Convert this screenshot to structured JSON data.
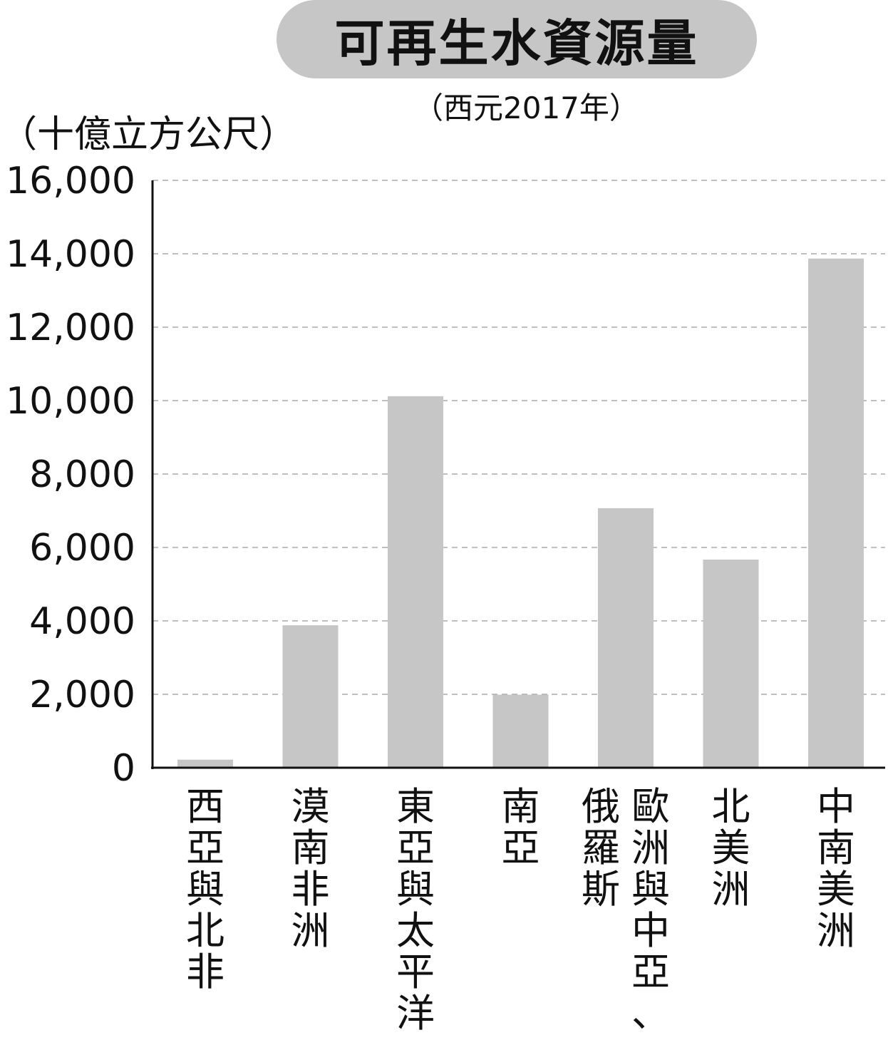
{
  "title": "可再生水資源量",
  "subtitle": "（西元2017年）",
  "unit_label": "（十億立方公尺）",
  "colors": {
    "bar": "#c6c6c6",
    "title_pill": "#c6c6c6",
    "axis": "#111111",
    "gridline": "#aaaaaa",
    "text": "#111111"
  },
  "chart_data": {
    "type": "bar",
    "title": "可再生水資源量",
    "subtitle": "（西元2017年）",
    "ylabel": "（十億立方公尺）",
    "xlabel": "",
    "ylim": [
      0,
      16000
    ],
    "y_ticks": [
      0,
      2000,
      4000,
      6000,
      8000,
      10000,
      12000,
      14000,
      16000
    ],
    "y_tick_labels": [
      "0",
      "2,000",
      "4,000",
      "6,000",
      "8,000",
      "10,000",
      "12,000",
      "14,000",
      "16,000"
    ],
    "grid": "horizontal-dashed",
    "categories": [
      "西亞與北非",
      "漠南非洲",
      "東亞與太平洋",
      "南亞",
      "歐洲與中亞、俄羅斯",
      "北美洲",
      "中南美洲"
    ],
    "category_label_columns": [
      [
        "西亞與北非"
      ],
      [
        "漠南非洲"
      ],
      [
        "東亞與太平洋"
      ],
      [
        "南亞"
      ],
      [
        "俄羅斯",
        "歐洲與中亞、"
      ],
      [
        "北美洲"
      ],
      [
        "中南美洲"
      ]
    ],
    "values": [
      220,
      3880,
      10120,
      1990,
      7070,
      5670,
      13870
    ]
  }
}
